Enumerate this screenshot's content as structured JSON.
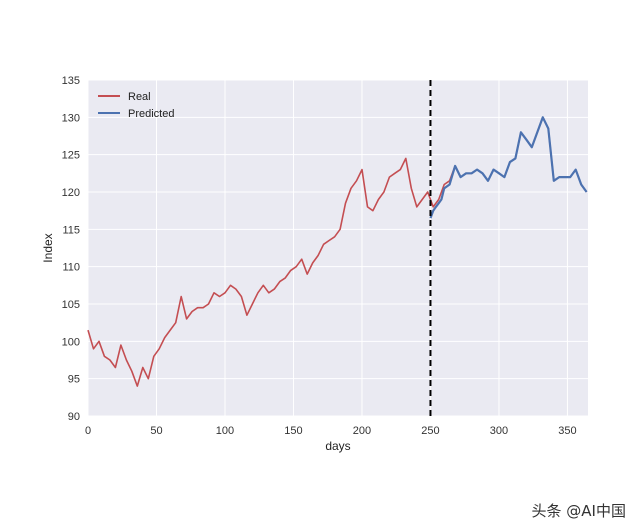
{
  "chart_data": {
    "type": "line",
    "title": "",
    "xlabel": "days",
    "ylabel": "Index",
    "xlim": [
      0,
      365
    ],
    "ylim": [
      90,
      135
    ],
    "xticks": [
      0,
      50,
      100,
      150,
      200,
      250,
      300,
      350
    ],
    "yticks": [
      90,
      95,
      100,
      105,
      110,
      115,
      120,
      125,
      130,
      135
    ],
    "grid": true,
    "legend_position": "top-left",
    "vline": {
      "x": 250,
      "style": "dashed",
      "color": "#000000"
    },
    "series": [
      {
        "name": "Real",
        "color": "#c44e52",
        "x": [
          0,
          4,
          8,
          12,
          16,
          20,
          24,
          28,
          32,
          36,
          40,
          44,
          48,
          52,
          56,
          60,
          64,
          68,
          72,
          76,
          80,
          84,
          88,
          92,
          96,
          100,
          104,
          108,
          112,
          116,
          120,
          124,
          128,
          132,
          136,
          140,
          144,
          148,
          152,
          156,
          160,
          164,
          168,
          172,
          176,
          180,
          184,
          188,
          192,
          196,
          200,
          204,
          208,
          212,
          216,
          220,
          224,
          228,
          232,
          236,
          240,
          244,
          248,
          252,
          256,
          260,
          264,
          268,
          272,
          276,
          280,
          284,
          288,
          292,
          296,
          300,
          304,
          308,
          312,
          316,
          320,
          324,
          328,
          332,
          336,
          340,
          344,
          348,
          352,
          356,
          360,
          364
        ],
        "y": [
          101.5,
          99.0,
          100.0,
          98.0,
          97.5,
          96.5,
          99.5,
          97.5,
          96.0,
          94.0,
          96.5,
          95.0,
          98.0,
          99.0,
          100.5,
          101.5,
          102.5,
          106.0,
          103.0,
          104.0,
          104.5,
          104.5,
          105.0,
          106.5,
          106.0,
          106.5,
          107.5,
          107.0,
          106.0,
          103.5,
          105.0,
          106.5,
          107.5,
          106.5,
          107.0,
          108.0,
          108.5,
          109.5,
          110.0,
          111.0,
          109.0,
          110.5,
          111.5,
          113.0,
          113.5,
          114.0,
          115.0,
          118.5,
          120.5,
          121.5,
          123.0,
          118.0,
          117.5,
          119.0,
          120.0,
          122.0,
          122.5,
          123.0,
          124.5,
          120.5,
          118.0,
          119.0,
          120.0,
          118.0,
          119.0,
          121.0,
          121.5,
          123.5,
          122.0,
          122.5,
          122.5,
          123.0,
          122.5,
          121.5,
          123.0,
          122.5,
          122.0,
          124.0,
          124.5,
          128.0,
          127.0,
          126.0,
          128.0,
          130.0,
          128.5,
          121.5,
          122.0,
          122.0,
          122.0,
          123.0,
          121.0,
          120.0
        ]
      },
      {
        "name": "Predicted",
        "color": "#4c72b0",
        "x": [
          250,
          252,
          254,
          256,
          258,
          260,
          264,
          268,
          272,
          276,
          280,
          284,
          288,
          292,
          296,
          300,
          304,
          308,
          312,
          316,
          320,
          324,
          328,
          332,
          336,
          340,
          344,
          348,
          352,
          356,
          360,
          364
        ],
        "y": [
          116.5,
          117.5,
          118.0,
          118.5,
          119.0,
          120.5,
          121.0,
          123.5,
          122.0,
          122.5,
          122.5,
          123.0,
          122.5,
          121.5,
          123.0,
          122.5,
          122.0,
          124.0,
          124.5,
          128.0,
          127.0,
          126.0,
          128.0,
          130.0,
          128.5,
          121.5,
          122.0,
          122.0,
          122.0,
          123.0,
          121.0,
          120.0
        ]
      }
    ]
  },
  "watermark": "头条 @AI中国"
}
